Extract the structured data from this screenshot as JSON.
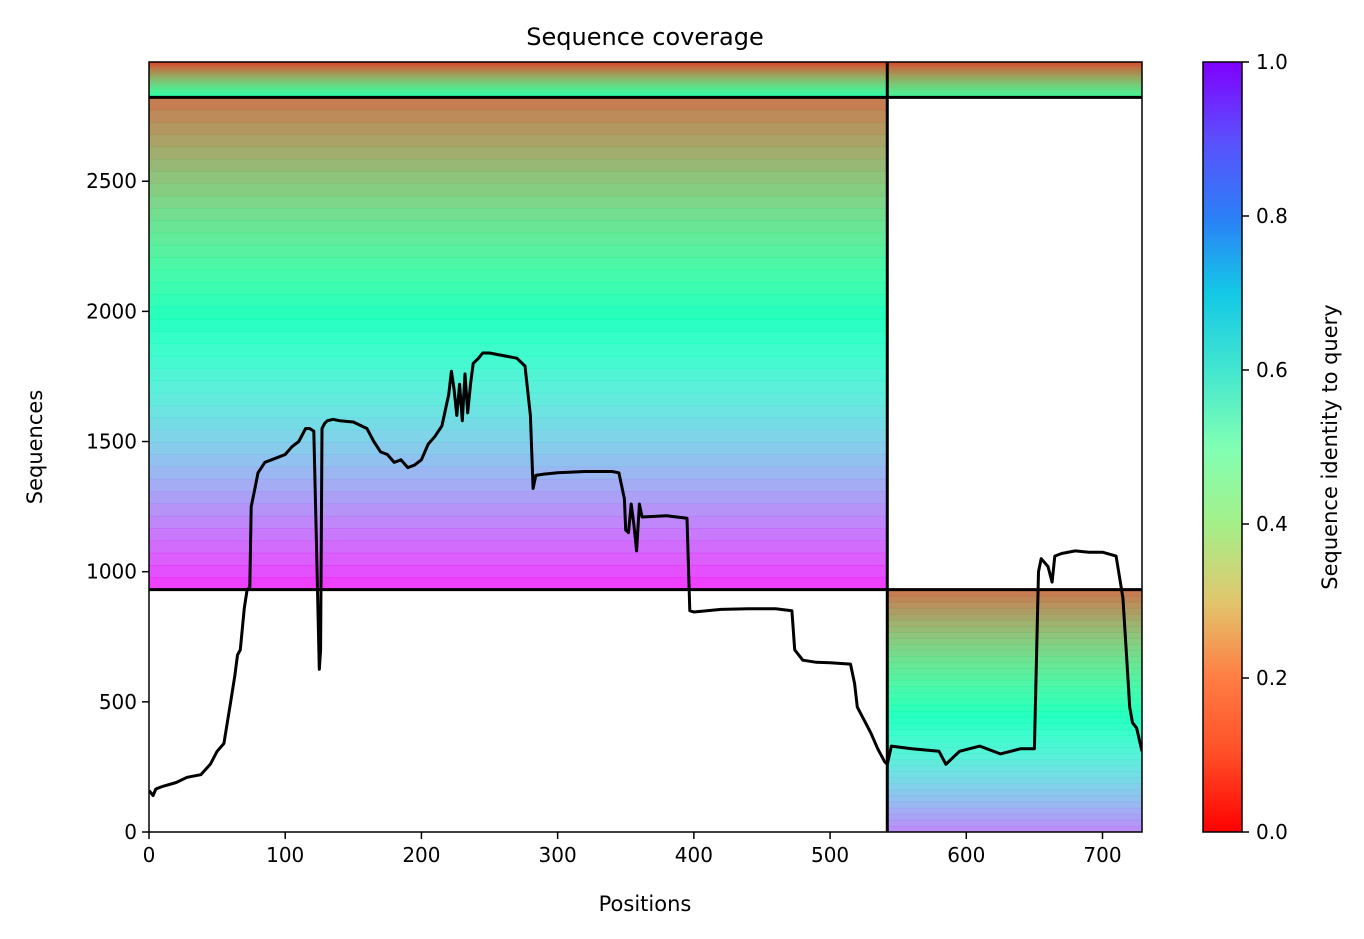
{
  "chart_data": {
    "type": "heatmap",
    "title": "Sequence coverage",
    "xlabel": "Positions",
    "ylabel": "Sequences",
    "xlim": [
      0,
      729
    ],
    "ylim": [
      0,
      2958
    ],
    "xticks": [
      0,
      100,
      200,
      300,
      400,
      500,
      600,
      700
    ],
    "yticks": [
      0,
      500,
      1000,
      1500,
      2000,
      2500
    ],
    "grid": false,
    "colorbar": {
      "label": "Sequence identity to query",
      "colormap": "rainbow",
      "range": [
        0.0,
        1.0
      ],
      "ticks": [
        0.0,
        0.2,
        0.4,
        0.6,
        0.8,
        1.0
      ],
      "tick_labels": [
        "0.0",
        "0.2",
        "0.4",
        "0.6",
        "0.8",
        "1.0"
      ]
    },
    "divider_positions": [
      542
    ],
    "divider_sequences": [
      931,
      2822
    ],
    "blocks": [
      {
        "x0": 0,
        "x1": 542,
        "y0": 2822,
        "y1": 2958,
        "identity_low": 0.55,
        "identity_high": 0.93
      },
      {
        "x0": 542,
        "x1": 729,
        "y0": 2822,
        "y1": 2958,
        "identity_low": 0.6,
        "identity_high": 0.92
      },
      {
        "x0": 0,
        "x1": 542,
        "y0": 931,
        "y1": 2822,
        "identity_low": 0.03,
        "identity_high": 0.88
      },
      {
        "x0": 542,
        "x1": 729,
        "y0": 0,
        "y1": 931,
        "identity_low": 0.15,
        "identity_high": 0.88
      }
    ],
    "coverage_line": {
      "name": "coverage",
      "x": [
        0,
        3,
        5,
        10,
        20,
        28,
        38,
        45,
        50,
        55,
        60,
        63,
        65,
        67,
        70,
        72,
        74,
        75,
        77,
        80,
        85,
        90,
        100,
        105,
        110,
        115,
        118,
        121,
        123,
        125,
        126,
        127,
        129,
        131,
        135,
        140,
        150,
        160,
        165,
        170,
        175,
        180,
        185,
        190,
        195,
        200,
        205,
        210,
        215,
        220,
        222,
        224,
        226,
        228,
        230,
        232,
        234,
        236,
        238,
        240,
        242,
        245,
        250,
        260,
        270,
        276,
        280,
        282,
        284,
        290,
        300,
        320,
        340,
        345,
        349,
        350,
        352,
        354,
        356,
        358,
        360,
        362,
        380,
        395,
        397,
        400,
        420,
        440,
        460,
        472,
        474,
        480,
        490,
        500,
        515,
        518,
        520,
        525,
        530,
        535,
        540,
        542,
        545,
        560,
        580,
        585,
        595,
        610,
        625,
        640,
        650,
        653,
        655,
        660,
        663,
        665,
        670,
        680,
        690,
        700,
        710,
        715,
        718,
        720,
        722,
        725,
        729
      ],
      "y": [
        160,
        140,
        165,
        175,
        190,
        210,
        220,
        260,
        310,
        340,
        500,
        600,
        680,
        700,
        860,
        930,
        940,
        1250,
        1300,
        1380,
        1420,
        1430,
        1450,
        1480,
        1500,
        1550,
        1550,
        1540,
        1100,
        625,
        700,
        1550,
        1570,
        1580,
        1585,
        1580,
        1575,
        1550,
        1500,
        1460,
        1450,
        1420,
        1430,
        1400,
        1410,
        1430,
        1490,
        1520,
        1560,
        1680,
        1770,
        1700,
        1600,
        1720,
        1580,
        1760,
        1610,
        1720,
        1800,
        1810,
        1820,
        1840,
        1840,
        1830,
        1820,
        1790,
        1600,
        1320,
        1370,
        1375,
        1380,
        1385,
        1385,
        1380,
        1280,
        1160,
        1150,
        1260,
        1180,
        1080,
        1260,
        1210,
        1215,
        1205,
        850,
        845,
        855,
        858,
        858,
        850,
        700,
        660,
        652,
        650,
        645,
        570,
        480,
        430,
        380,
        320,
        270,
        260,
        330,
        320,
        310,
        260,
        310,
        330,
        300,
        320,
        320,
        1000,
        1050,
        1020,
        960,
        1060,
        1070,
        1080,
        1075,
        1075,
        1060,
        900,
        650,
        480,
        420,
        400,
        310
      ]
    }
  }
}
